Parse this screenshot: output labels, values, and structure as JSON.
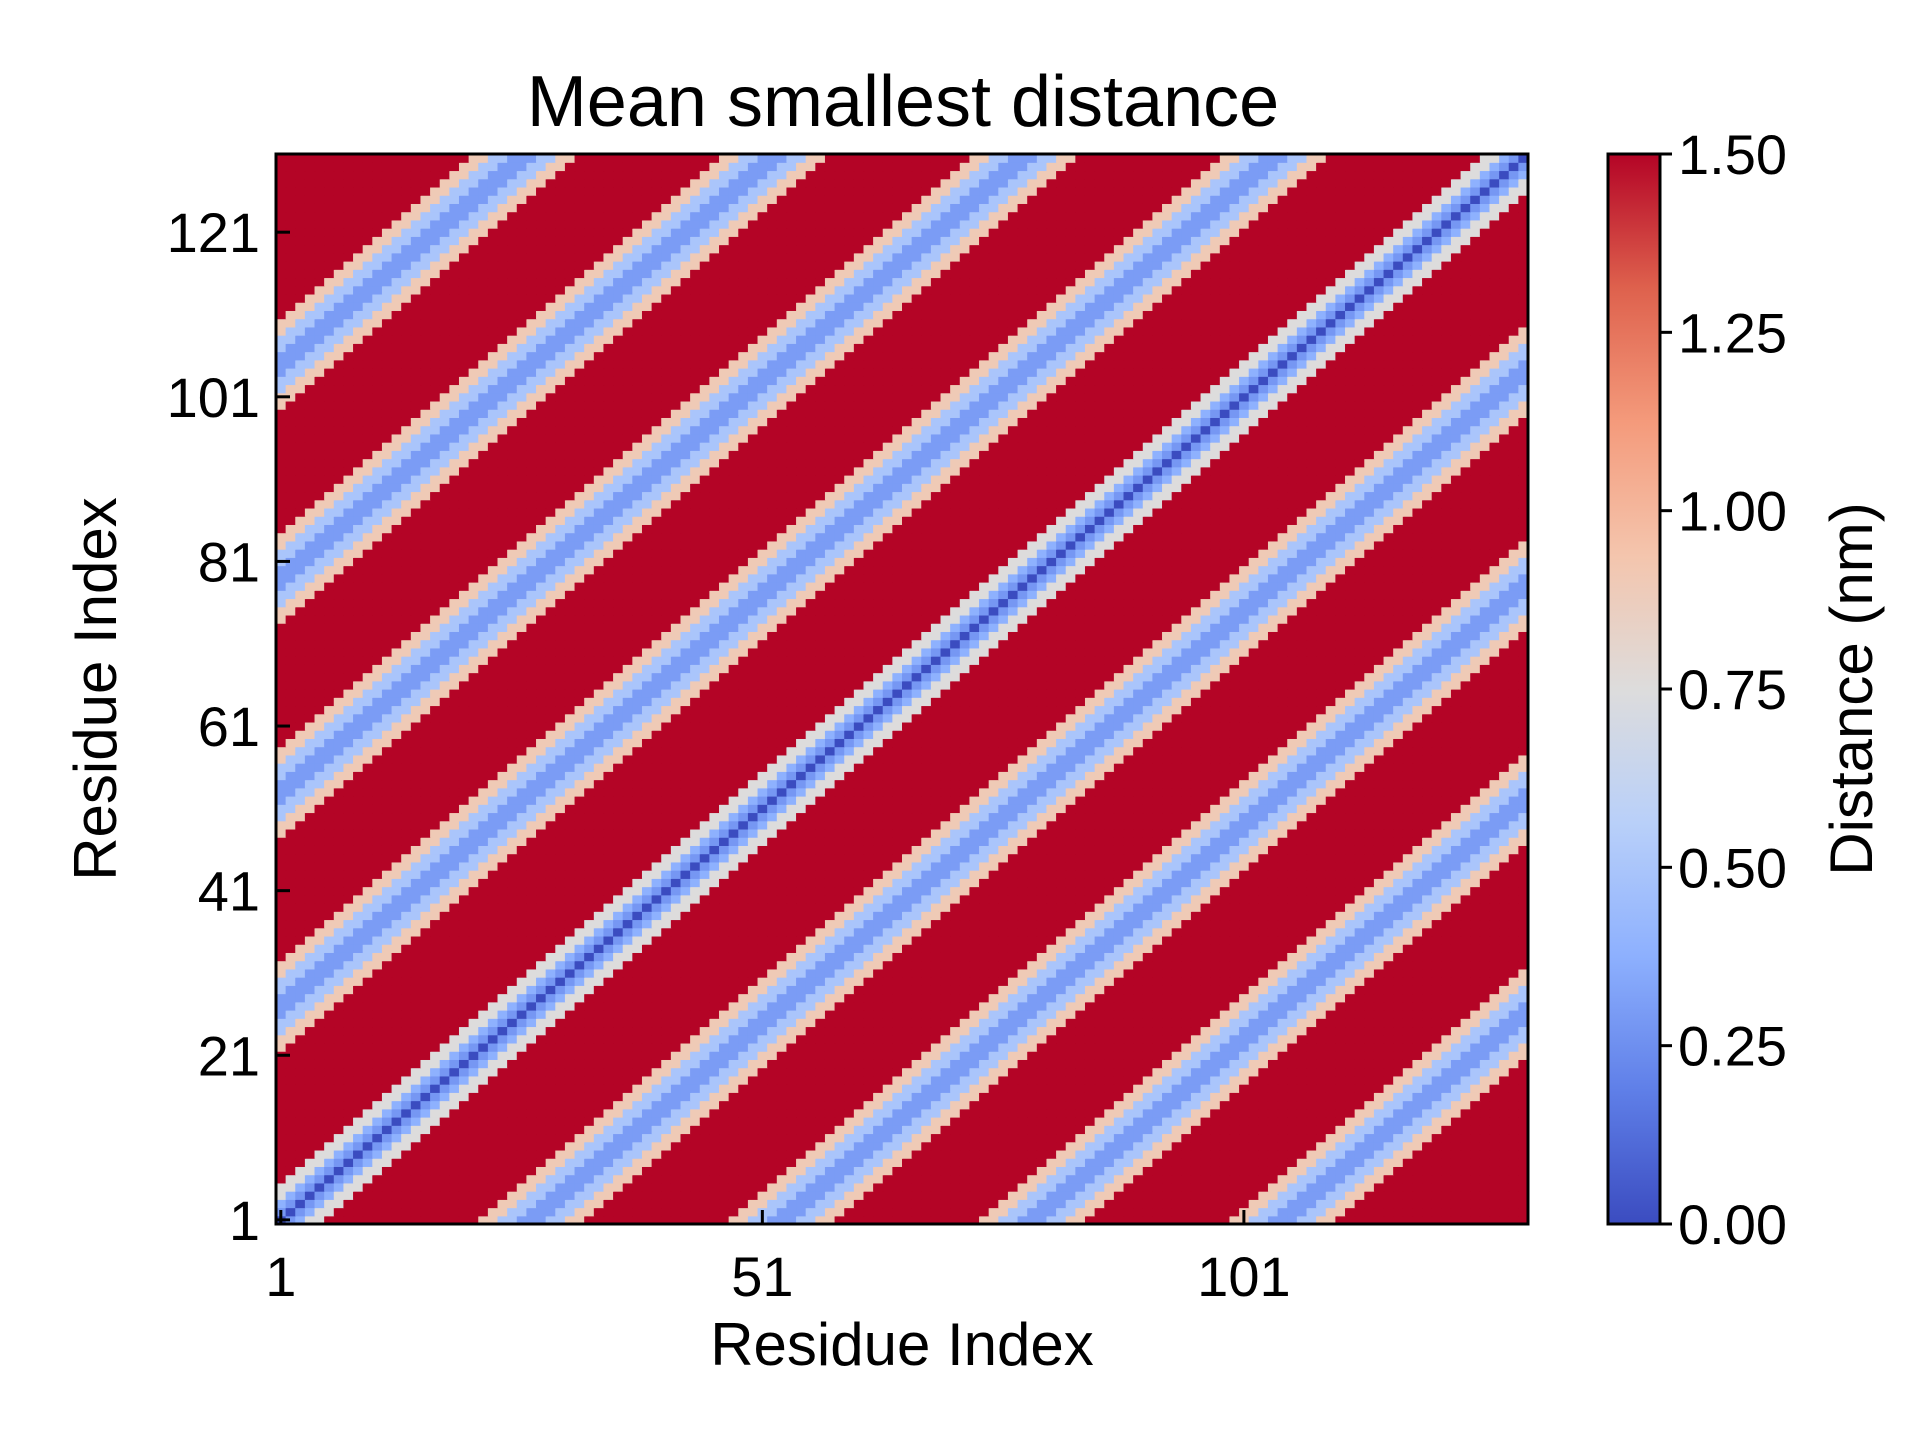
{
  "chart_data": {
    "type": "heatmap",
    "title": "Mean smallest distance",
    "xlabel": "Residue Index",
    "ylabel": "Residue Index",
    "n_residues": 130,
    "x_ticks": [
      1,
      51,
      101
    ],
    "y_ticks": [
      1,
      21,
      41,
      61,
      81,
      101,
      121
    ],
    "segment_length": 26,
    "segment_start_residues": [
      1,
      27,
      53,
      79,
      105
    ],
    "value_rule": "distance(i,j) = d(|i-j|) on each diagonal band (|i-j| in {0, 26, 52, 78, 104}), saturated elsewhere; rendered on a 130 x 130 grid",
    "band_offsets": [
      0,
      26,
      52,
      78,
      104
    ],
    "distance_profile": {
      "diagonal_core_nm": 0.0,
      "band_core_nm": 0.3,
      "band_edge_nm": 0.75,
      "off_band_nm": 1.5
    },
    "colorbar": {
      "label": "Distance (nm)",
      "min": 0.0,
      "max": 1.5,
      "ticks": [
        "0.00",
        "0.25",
        "0.50",
        "0.75",
        "1.00",
        "1.25",
        "1.50"
      ],
      "colormap": "coolwarm"
    },
    "colors": {
      "low": "#3b4cc0",
      "mid": "#dddddd",
      "high": "#b40426",
      "axis": "#000000"
    }
  }
}
